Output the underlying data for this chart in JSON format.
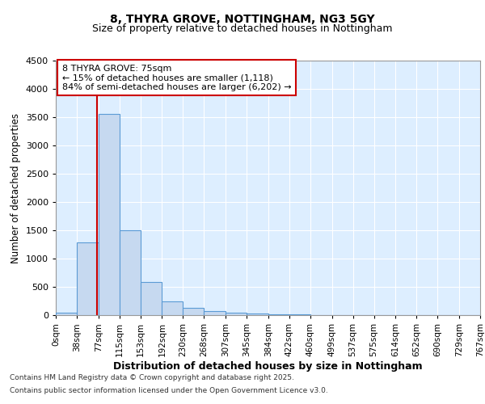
{
  "title1": "8, THYRA GROVE, NOTTINGHAM, NG3 5GY",
  "title2": "Size of property relative to detached houses in Nottingham",
  "xlabel": "Distribution of detached houses by size in Nottingham",
  "ylabel": "Number of detached properties",
  "bin_labels": [
    "0sqm",
    "38sqm",
    "77sqm",
    "115sqm",
    "153sqm",
    "192sqm",
    "230sqm",
    "268sqm",
    "307sqm",
    "345sqm",
    "384sqm",
    "422sqm",
    "460sqm",
    "499sqm",
    "537sqm",
    "575sqm",
    "614sqm",
    "652sqm",
    "690sqm",
    "729sqm",
    "767sqm"
  ],
  "bin_edges": [
    0,
    38,
    77,
    115,
    153,
    192,
    230,
    268,
    307,
    345,
    384,
    422,
    460,
    499,
    537,
    575,
    614,
    652,
    690,
    729,
    767
  ],
  "bar_values": [
    50,
    1280,
    3550,
    1500,
    590,
    245,
    130,
    75,
    40,
    22,
    12,
    8,
    5,
    3,
    2,
    2,
    1,
    1,
    1,
    1
  ],
  "bar_color": "#c6d9f0",
  "bar_edge_color": "#5b9bd5",
  "property_size": 75,
  "property_label": "8 THYRA GROVE: 75sqm",
  "annotation_line1": "← 15% of detached houses are smaller (1,118)",
  "annotation_line2": "84% of semi-detached houses are larger (6,202) →",
  "vline_color": "#cc0000",
  "ylim": [
    0,
    4500
  ],
  "yticks": [
    0,
    500,
    1000,
    1500,
    2000,
    2500,
    3000,
    3500,
    4000,
    4500
  ],
  "footer1": "Contains HM Land Registry data © Crown copyright and database right 2025.",
  "footer2": "Contains public sector information licensed under the Open Government Licence v3.0.",
  "bg_color": "#ddeeff",
  "fig_bg": "#ffffff",
  "grid_color": "#ffffff",
  "title_fontsize": 10,
  "subtitle_fontsize": 9
}
